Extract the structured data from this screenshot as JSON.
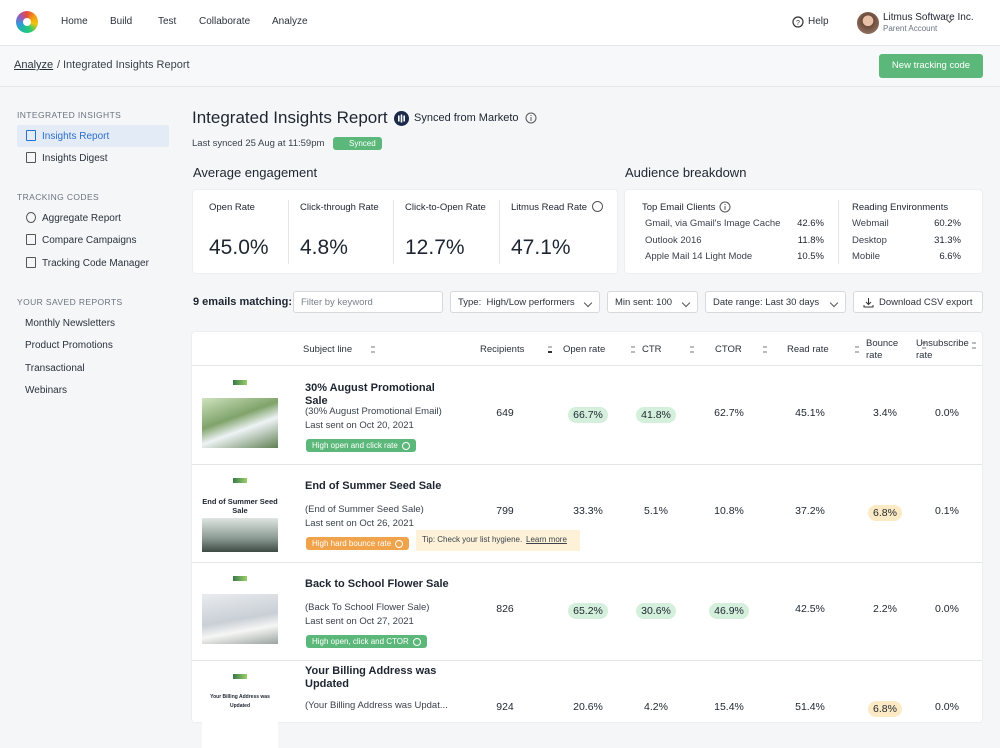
{
  "nav": {
    "items": [
      "Home",
      "Build",
      "Test",
      "Collaborate",
      "Analyze"
    ],
    "help": "Help",
    "account_name": "Litmus Software Inc.",
    "account_role": "Parent Account"
  },
  "breadcrumb": {
    "parent": "Analyze",
    "separator": "/",
    "current": "Integrated Insights Report"
  },
  "new_button": "New tracking code",
  "sidebar": {
    "sections": [
      {
        "heading": "INTEGRATED INSIGHTS",
        "items": [
          "Insights Report",
          "Insights Digest"
        ],
        "active": 0
      },
      {
        "heading": "TRACKING CODES",
        "items": [
          "Aggregate Report",
          "Compare Campaigns",
          "Tracking Code Manager"
        ]
      },
      {
        "heading": "YOUR SAVED REPORTS",
        "items": [
          "Monthly Newsletters",
          "Product Promotions",
          "Transactional",
          "Webinars"
        ]
      }
    ]
  },
  "header": {
    "title": "Integrated Insights Report",
    "source": "Synced from Marketo",
    "last_synced": "Last synced 25 Aug at 11:59pm",
    "status": "Synced"
  },
  "engagement": {
    "title": "Average engagement",
    "metrics": [
      {
        "label": "Open Rate",
        "value": "45.0%"
      },
      {
        "label": "Click-through Rate",
        "value": "4.8%"
      },
      {
        "label": "Click-to-Open Rate",
        "value": "12.7%"
      },
      {
        "label": "Litmus Read Rate",
        "value": "47.1%"
      }
    ]
  },
  "audience": {
    "title": "Audience breakdown",
    "clients": {
      "heading": "Top Email Clients",
      "rows": [
        [
          "Gmail, via Gmail's Image Cache",
          "42.6%"
        ],
        [
          "Outlook 2016",
          "11.8%"
        ],
        [
          "Apple Mail 14 Light Mode",
          "10.5%"
        ]
      ]
    },
    "environments": {
      "heading": "Reading Environments",
      "rows": [
        [
          "Webmail",
          "60.2%"
        ],
        [
          "Desktop",
          "31.3%"
        ],
        [
          "Mobile",
          "6.6%"
        ]
      ]
    }
  },
  "filters": {
    "count": "9 emails matching:",
    "keyword_placeholder": "Filter by keyword",
    "type": "Type:  High/Low performers",
    "min_sent": "Min sent: 100",
    "date_range": "Date range: Last 30 days",
    "download": "Download CSV export"
  },
  "table": {
    "columns": [
      "Subject line",
      "Recipients",
      "Open rate",
      "CTR",
      "CTOR",
      "Read rate",
      "Bounce rate",
      "Unsubscribe rate"
    ],
    "rows": [
      {
        "title": "30% August Promotional Sale",
        "preheader": "(30% August Promotional Email)",
        "last_sent": "Last sent on Oct 20, 2021",
        "badge": {
          "text": "High open and click rate",
          "tone": "green"
        },
        "cells": [
          {
            "text": "649"
          },
          {
            "text": "66.7%",
            "highlight": "green"
          },
          {
            "text": "41.8%",
            "highlight": "green"
          },
          {
            "text": "62.7%"
          },
          {
            "text": "45.1%"
          },
          {
            "text": "3.4%"
          },
          {
            "text": "0.0%"
          }
        ]
      },
      {
        "title": "End of Summer Seed Sale",
        "preheader": "(End of Summer Seed Sale)",
        "last_sent": "Last sent on Oct 26, 2021",
        "thumb_text": "End of Summer Seed Sale",
        "badge": {
          "text": "High hard bounce rate",
          "tone": "orange"
        },
        "tip": {
          "text": "Tip: Check your list hygiene.",
          "link": "Learn more"
        },
        "cells": [
          {
            "text": "799"
          },
          {
            "text": "33.3%"
          },
          {
            "text": "5.1%"
          },
          {
            "text": "10.8%"
          },
          {
            "text": "37.2%"
          },
          {
            "text": "6.8%",
            "highlight": "yellow"
          },
          {
            "text": "0.1%"
          }
        ]
      },
      {
        "title": "Back to School Flower Sale",
        "preheader": "(Back To School Flower Sale)",
        "last_sent": "Last sent on Oct 27, 2021",
        "badge": {
          "text": "High open, click and CTOR",
          "tone": "green"
        },
        "cells": [
          {
            "text": "826"
          },
          {
            "text": "65.2%",
            "highlight": "green"
          },
          {
            "text": "30.6%",
            "highlight": "green"
          },
          {
            "text": "46.9%",
            "highlight": "green"
          },
          {
            "text": "42.5%"
          },
          {
            "text": "2.2%"
          },
          {
            "text": "0.0%"
          }
        ]
      },
      {
        "title": "Your Billing Address was Updated",
        "preheader": "(Your Billing Address was Updat...",
        "thumb_text": "Your Billing Address was Updated",
        "cells": [
          {
            "text": "924"
          },
          {
            "text": "20.6%"
          },
          {
            "text": "4.2%"
          },
          {
            "text": "15.4%"
          },
          {
            "text": "51.4%"
          },
          {
            "text": "6.8%",
            "highlight": "yellow"
          },
          {
            "text": "0.0%"
          }
        ]
      }
    ]
  }
}
